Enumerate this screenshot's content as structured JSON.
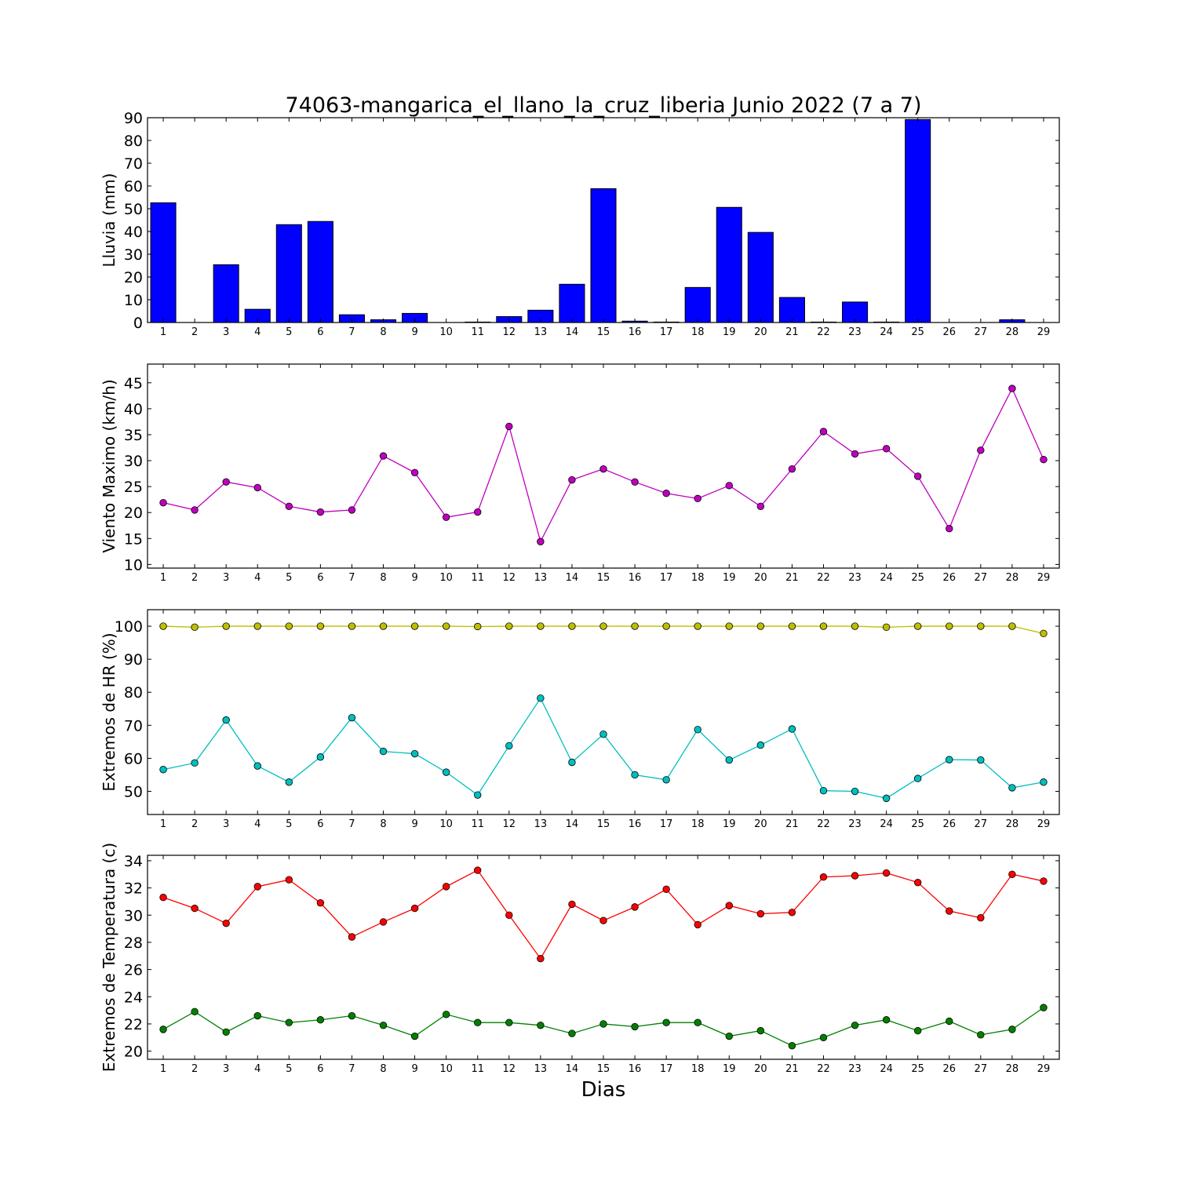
{
  "chart_data": [
    {
      "type": "bar",
      "title": "74063-mangarica_el_llano_la_cruz_liberia Junio 2022  (7 a 7)",
      "ylabel": "Lluvia (mm)",
      "xlabel": "",
      "x": [
        1,
        2,
        3,
        4,
        5,
        6,
        7,
        8,
        9,
        10,
        11,
        12,
        13,
        14,
        15,
        16,
        17,
        18,
        19,
        20,
        21,
        22,
        23,
        24,
        25,
        26,
        27,
        28,
        29
      ],
      "ylim": [
        0,
        90
      ],
      "yticks": [
        0,
        10,
        20,
        30,
        40,
        50,
        60,
        70,
        80,
        90
      ],
      "grid": false,
      "series": [
        {
          "color": "#0000ff",
          "values": [
            52.6,
            0.0,
            25.4,
            5.8,
            43.0,
            44.4,
            3.4,
            1.2,
            4.0,
            0.0,
            0.2,
            2.6,
            5.4,
            16.8,
            58.8,
            0.6,
            0.2,
            15.4,
            50.6,
            39.6,
            11.0,
            0.2,
            9.0,
            0.2,
            89.2,
            0.0,
            0.0,
            1.2,
            0.0
          ]
        }
      ]
    },
    {
      "type": "line",
      "ylabel": "Viento Maximo (km/h)",
      "xlabel": "",
      "x": [
        1,
        2,
        3,
        4,
        5,
        6,
        7,
        8,
        9,
        10,
        11,
        12,
        13,
        14,
        15,
        16,
        17,
        18,
        19,
        20,
        21,
        22,
        23,
        24,
        25,
        26,
        27,
        28,
        29
      ],
      "ylim": [
        9.3,
        48.6
      ],
      "yticks": [
        10,
        15,
        20,
        25,
        30,
        35,
        40,
        45
      ],
      "grid": false,
      "series": [
        {
          "color": "#bf00bf",
          "values": [
            21.9,
            20.5,
            25.9,
            24.8,
            21.2,
            20.1,
            20.5,
            30.9,
            27.7,
            19.1,
            20.1,
            36.6,
            14.4,
            26.3,
            28.4,
            25.9,
            23.7,
            22.7,
            25.2,
            21.2,
            28.4,
            35.6,
            31.3,
            32.3,
            27.0,
            16.9,
            32.0,
            43.9,
            30.2
          ]
        }
      ]
    },
    {
      "type": "line",
      "ylabel": "Extremos de HR (%)",
      "xlabel": "",
      "x": [
        1,
        2,
        3,
        4,
        5,
        6,
        7,
        8,
        9,
        10,
        11,
        12,
        13,
        14,
        15,
        16,
        17,
        18,
        19,
        20,
        21,
        22,
        23,
        24,
        25,
        26,
        27,
        28,
        29
      ],
      "ylim": [
        43,
        105
      ],
      "yticks": [
        50,
        60,
        70,
        80,
        90,
        100
      ],
      "grid": false,
      "series": [
        {
          "color": "#bfbf00",
          "values": [
            100,
            99.7,
            100,
            100,
            100,
            100,
            100,
            100,
            100,
            100,
            99.9,
            100,
            100,
            100,
            100,
            100,
            100,
            100,
            100,
            100,
            100,
            100,
            100,
            99.7,
            100,
            100,
            100,
            100,
            97.8
          ]
        },
        {
          "color": "#00bfbf",
          "values": [
            56.6,
            58.6,
            71.6,
            57.7,
            52.8,
            60.4,
            72.3,
            62.1,
            61.4,
            55.8,
            48.9,
            63.8,
            78.2,
            58.8,
            67.3,
            55.0,
            53.5,
            68.7,
            59.5,
            64.0,
            68.9,
            50.2,
            50.0,
            47.9,
            53.9,
            59.6,
            59.5,
            51.1,
            52.8
          ]
        }
      ]
    },
    {
      "type": "line",
      "ylabel": "Extremos de Temperatura (c)",
      "xlabel": "Dias",
      "x": [
        1,
        2,
        3,
        4,
        5,
        6,
        7,
        8,
        9,
        10,
        11,
        12,
        13,
        14,
        15,
        16,
        17,
        18,
        19,
        20,
        21,
        22,
        23,
        24,
        25,
        26,
        27,
        28,
        29
      ],
      "ylim": [
        19.4,
        34.4
      ],
      "yticks": [
        20,
        22,
        24,
        26,
        28,
        30,
        32,
        34
      ],
      "grid": false,
      "series": [
        {
          "color": "#ff0000",
          "values": [
            31.3,
            30.5,
            29.4,
            32.1,
            32.6,
            30.9,
            28.4,
            29.5,
            30.5,
            32.1,
            33.3,
            30.0,
            26.8,
            30.8,
            29.6,
            30.6,
            31.9,
            29.3,
            30.7,
            30.1,
            30.2,
            32.8,
            32.9,
            33.1,
            32.4,
            30.3,
            29.8,
            33.0,
            32.5
          ]
        },
        {
          "color": "#008000",
          "values": [
            21.6,
            22.9,
            21.4,
            22.6,
            22.1,
            22.3,
            22.6,
            21.9,
            21.1,
            22.7,
            22.1,
            22.1,
            21.9,
            21.3,
            22.0,
            21.8,
            22.1,
            22.1,
            21.1,
            21.5,
            20.4,
            21.0,
            21.9,
            22.3,
            21.5,
            22.2,
            21.2,
            21.6,
            23.2
          ]
        }
      ]
    }
  ]
}
